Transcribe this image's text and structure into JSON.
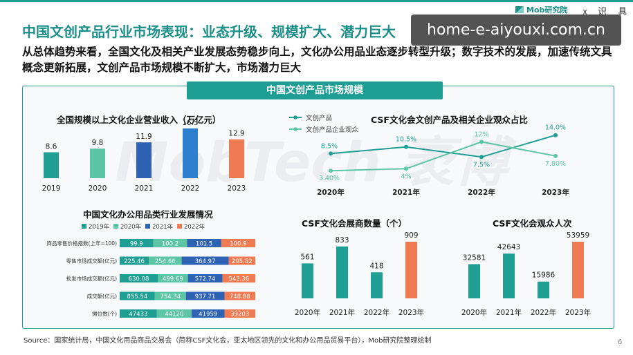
{
  "header": {
    "title": "中国文创产品行业市场表现：业态升级、规模扩大、潜力巨大",
    "subtitle": "从总体趋势来看，全国文化及相关产业发展态势稳步向上，文化办公用品业态逐步转型升级；数字技术的发展，加速传统文具概念更新拓展，文创产品市场规模不断扩大，市场潜力巨大",
    "brand": "Mob研究院",
    "close_glyph": "x",
    "corner_text": "识 具"
  },
  "overlay": {
    "url": "home-e-aiyouxi.com.cn"
  },
  "watermark": "MobTech 袤博",
  "banner": "中国文创产品市场规模",
  "source": "Source：国家统计局，中国文化用品商品交易会（简称CSF文化会，亚太地区领先的文化和办公用品贸易平台），Mob研究院整理绘制",
  "page_number": "6",
  "colors": {
    "accent": "#1f9e93",
    "c2019": "#1f9e93",
    "c2020": "#5cc6a4",
    "c2021": "#2e63b3",
    "c2022": "#2f7fd1",
    "c2023": "#f07a52",
    "stacked_2022": "#f07a52"
  },
  "chart_data": [
    {
      "id": "revenue",
      "type": "bar",
      "title": "全国规模以上文化企业营业收入（万亿元）",
      "categories": [
        "2019",
        "2020",
        "2021",
        "2022",
        "2023"
      ],
      "values": [
        8.6,
        9.8,
        11.9,
        16.5,
        12.9
      ],
      "value_labels": [
        "8.6",
        "9.8",
        "11.9",
        "16.5",
        "12.9"
      ]
    },
    {
      "id": "audience_share",
      "type": "line",
      "title": "CSF文化会文创产品及相关企业观众占比",
      "categories": [
        "2020年",
        "2021年",
        "2022年",
        "2023年"
      ],
      "series": [
        {
          "name": "文创产品",
          "values": [
            8.5,
            10.5,
            7.5,
            14.0
          ],
          "labels": [
            "8.5%",
            "10.5%",
            "7.5%",
            "14.0%"
          ]
        },
        {
          "name": "文创产品企业观众",
          "values": [
            3.4,
            4,
            12,
            7.8
          ],
          "labels": [
            "3.40%",
            "4%",
            "12%",
            "7.80%"
          ]
        }
      ]
    },
    {
      "id": "office_supplies",
      "type": "bar",
      "title": "中国文化办公用品类行业发展情况",
      "legend": [
        "2019年",
        "2020年",
        "2021年",
        "2022年"
      ],
      "rows": [
        {
          "label": "商品零售价格指数(上年=100)",
          "values": [
            99.9,
            100.2,
            101.5,
            100.9
          ],
          "value_labels": [
            "99.9",
            "100.2",
            "101.5",
            "100.9"
          ]
        },
        {
          "label": "零售市场成交额(亿元)",
          "values": [
            225.46,
            254.66,
            364.97,
            205.52
          ],
          "value_labels": [
            "225.46",
            "254.66",
            "364.97",
            "205.52"
          ]
        },
        {
          "label": "批发市场成交额(亿元)",
          "values": [
            630.08,
            499.69,
            572.74,
            543.36
          ],
          "value_labels": [
            "630.08",
            "499.69",
            "572.74",
            "543.36"
          ]
        },
        {
          "label": "成交额(亿元)",
          "values": [
            855.54,
            754.34,
            937.71,
            748.88
          ],
          "value_labels": [
            "855.54",
            "754.34",
            "937.71",
            "748.88"
          ]
        },
        {
          "label": "摊位数(个)",
          "values": [
            47433,
            44120,
            41959,
            39203
          ],
          "value_labels": [
            "47433",
            "44120",
            "41959",
            "39203"
          ]
        }
      ]
    },
    {
      "id": "exhibitors",
      "type": "bar",
      "title": "CSF文化会展商数量（个）",
      "categories": [
        "2020年",
        "2021年",
        "2022年",
        "2023年"
      ],
      "values": [
        561,
        833,
        418,
        909
      ],
      "value_labels": [
        "561",
        "833",
        "418",
        "909"
      ]
    },
    {
      "id": "visitors",
      "type": "bar",
      "title": "CSF文化会观众人次",
      "categories": [
        "2020年",
        "2021年",
        "2022年",
        "2023年"
      ],
      "values": [
        32581,
        42643,
        15986,
        53959
      ],
      "value_labels": [
        "32581",
        "42643",
        "15986",
        "53959"
      ]
    }
  ]
}
